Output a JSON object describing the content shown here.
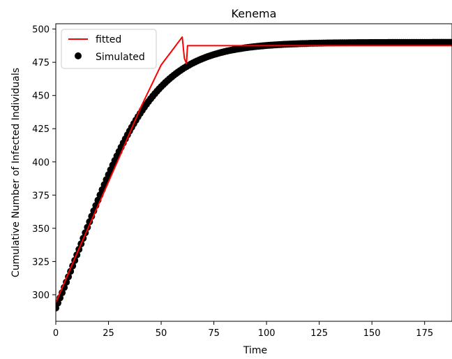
{
  "chart_data": {
    "type": "line",
    "title": "Kenema",
    "xlabel": "Time",
    "ylabel": "Cumulative Number of Infected Individuals",
    "xlim": [
      0,
      188
    ],
    "ylim": [
      280,
      504
    ],
    "x_ticks": [
      0,
      25,
      50,
      75,
      100,
      125,
      150,
      175
    ],
    "y_ticks": [
      300,
      325,
      350,
      375,
      400,
      425,
      450,
      475,
      500
    ],
    "grid": false,
    "legend_position": "top-left",
    "series": [
      {
        "name": "fitted",
        "kind": "line",
        "color": "#ff0000",
        "x": [
          0,
          10,
          20,
          30,
          40,
          50,
          60,
          61,
          62,
          62.5,
          150,
          188
        ],
        "y": [
          294,
          331,
          367,
          403,
          440,
          473,
          494,
          478,
          474,
          487.5,
          487.5,
          487.5
        ]
      },
      {
        "name": "Simulated",
        "kind": "scatter",
        "color": "#000000",
        "model": {
          "start": 290,
          "end": 490,
          "rate": 0.055,
          "midpoint": 12
        },
        "x_range": [
          0,
          188
        ],
        "x_step": 1
      }
    ]
  }
}
